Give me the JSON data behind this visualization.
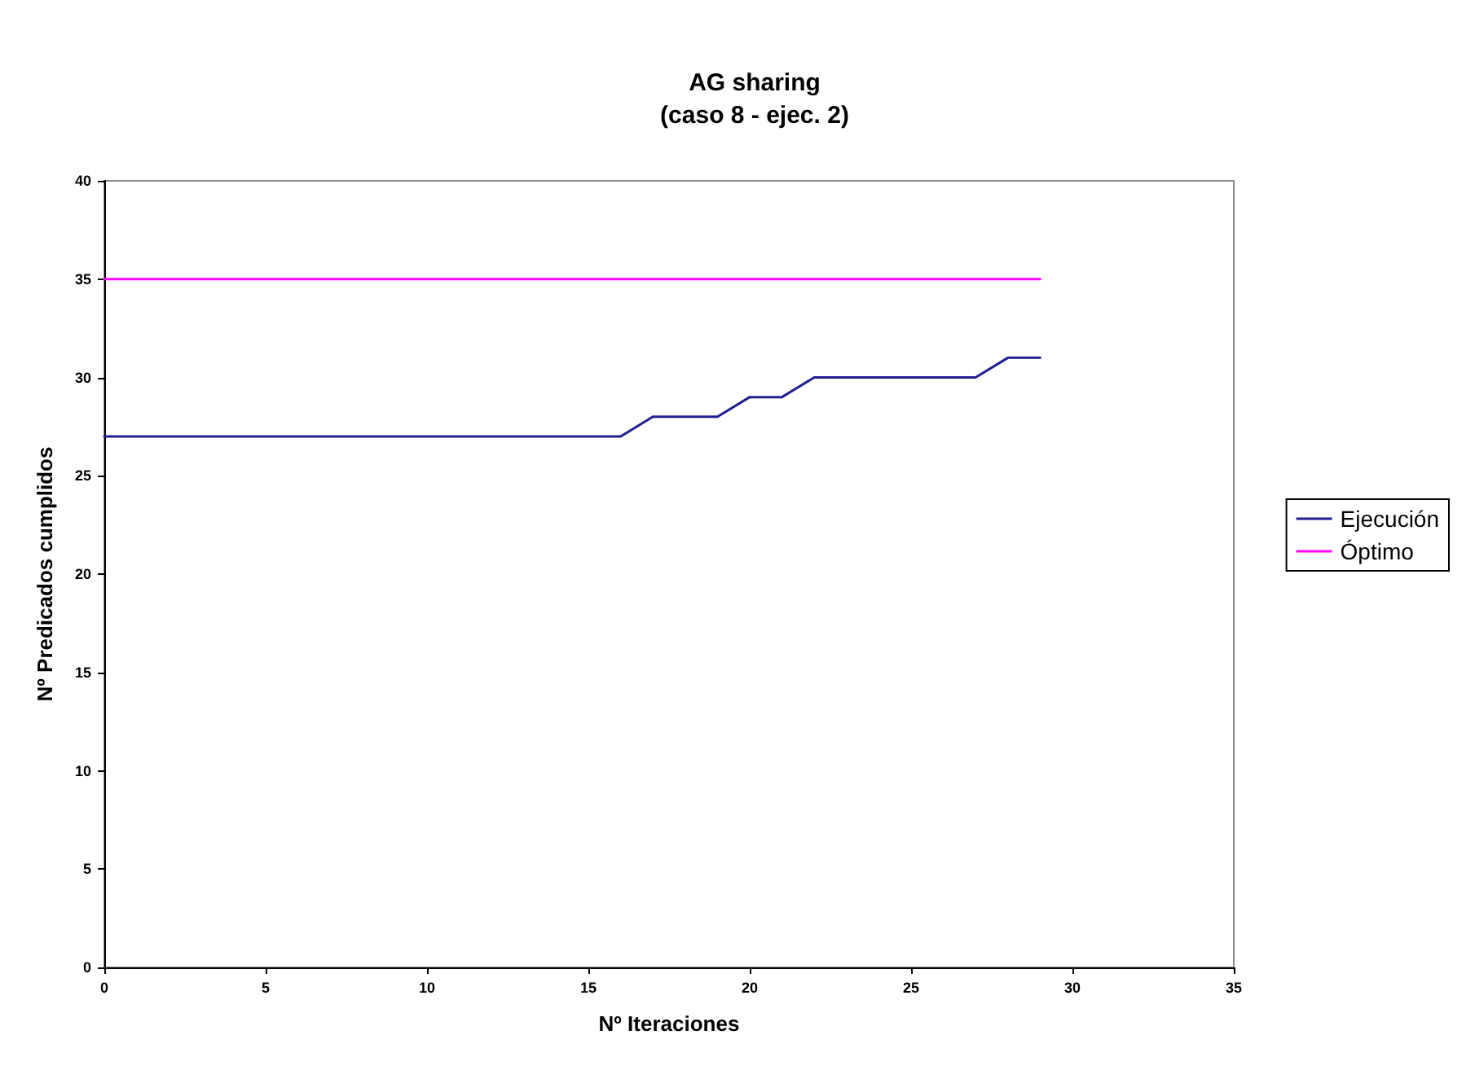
{
  "chart_data": {
    "type": "line",
    "title": "AG sharing\n(caso 8 - ejec. 2)",
    "xlabel": "Nº Iteraciones",
    "ylabel": "Nº Predicados cumplidos",
    "x": [
      0,
      1,
      2,
      3,
      4,
      5,
      6,
      7,
      8,
      9,
      10,
      11,
      12,
      13,
      14,
      15,
      16,
      17,
      18,
      19,
      20,
      21,
      22,
      23,
      24,
      25,
      26,
      27,
      28,
      29
    ],
    "series": [
      {
        "name": "Ejecución",
        "color": "#1f1f8f",
        "values": [
          27,
          27,
          27,
          27,
          27,
          27,
          27,
          27,
          27,
          27,
          27,
          27,
          27,
          27,
          27,
          27,
          27,
          28,
          28,
          28,
          29,
          29,
          30,
          30,
          30,
          30,
          30,
          30,
          31,
          31
        ]
      },
      {
        "name": "Óptimo",
        "color": "#ff00ff",
        "values": [
          35,
          35,
          35,
          35,
          35,
          35,
          35,
          35,
          35,
          35,
          35,
          35,
          35,
          35,
          35,
          35,
          35,
          35,
          35,
          35,
          35,
          35,
          35,
          35,
          35,
          35,
          35,
          35,
          35,
          35
        ]
      }
    ],
    "xlim": [
      0,
      35
    ],
    "xticks": [
      0,
      5,
      10,
      15,
      20,
      25,
      30,
      35
    ],
    "ylim": [
      0,
      40
    ],
    "yticks": [
      0,
      5,
      10,
      15,
      20,
      25,
      30,
      35,
      40
    ],
    "grid": false,
    "legend": "right",
    "marker": "none",
    "line_style": "solid"
  }
}
